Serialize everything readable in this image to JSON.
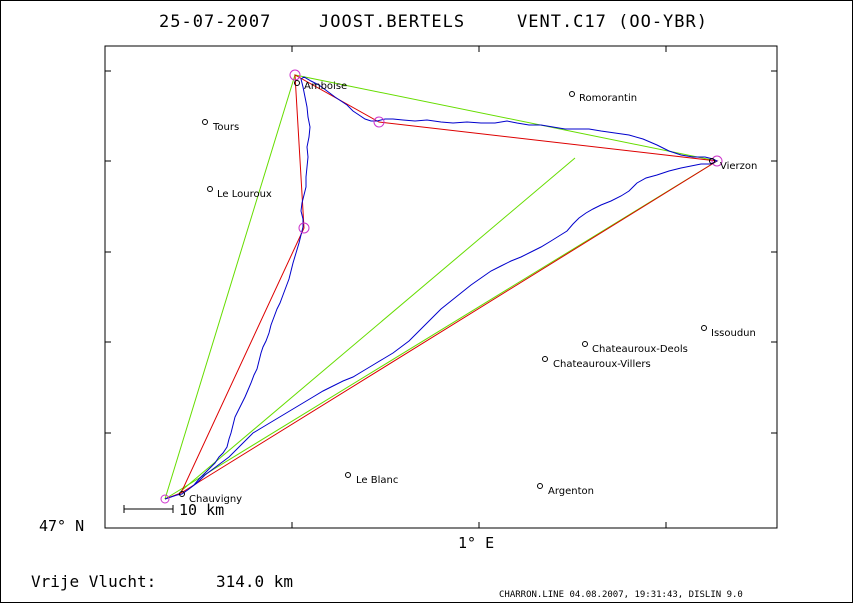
{
  "header": {
    "date": "25-07-2007",
    "pilot": "JOOST.BERTELS",
    "glider": "VENT.C17 (OO-YBR)"
  },
  "axes": {
    "lat_label": "47° N",
    "lon_label": "1° E"
  },
  "scale_bar": {
    "label": "10 km"
  },
  "cities": [
    {
      "name": "Amboise"
    },
    {
      "name": "Romorantin"
    },
    {
      "name": "Tours"
    },
    {
      "name": "Vierzon"
    },
    {
      "name": "Le Louroux"
    },
    {
      "name": "Issoudun"
    },
    {
      "name": "Chateauroux-Deols"
    },
    {
      "name": "Chateauroux-Villers"
    },
    {
      "name": "Le Blanc"
    },
    {
      "name": "Argenton"
    },
    {
      "name": "Chauvigny"
    }
  ],
  "footer": {
    "distance_label": "Vrije Vlucht:",
    "distance_value": "314.0 km",
    "credit": "CHARRON.LINE 04.08.2007, 19:31:43, DISLIN 9.0"
  },
  "colors": {
    "track": "#0000cc",
    "route": "#dd0000",
    "triangle": "#66dd00",
    "turnpoint": "#cc33cc",
    "frame": "#000000"
  }
}
